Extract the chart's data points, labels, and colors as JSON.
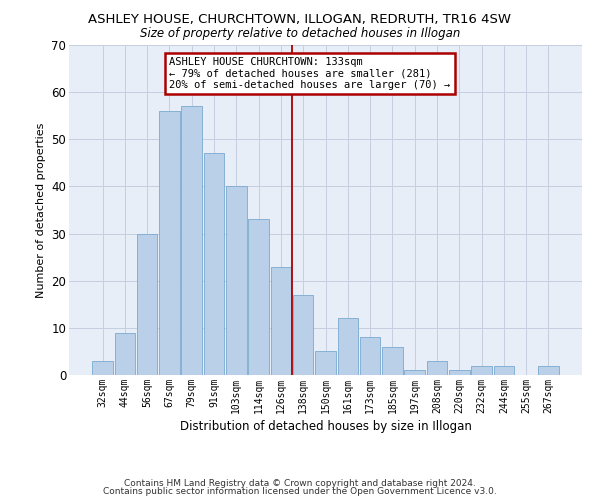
{
  "title": "ASHLEY HOUSE, CHURCHTOWN, ILLOGAN, REDRUTH, TR16 4SW",
  "subtitle": "Size of property relative to detached houses in Illogan",
  "xlabel": "Distribution of detached houses by size in Illogan",
  "ylabel": "Number of detached properties",
  "categories": [
    "32sqm",
    "44sqm",
    "56sqm",
    "67sqm",
    "79sqm",
    "91sqm",
    "103sqm",
    "114sqm",
    "126sqm",
    "138sqm",
    "150sqm",
    "161sqm",
    "173sqm",
    "185sqm",
    "197sqm",
    "208sqm",
    "220sqm",
    "232sqm",
    "244sqm",
    "255sqm",
    "267sqm"
  ],
  "values": [
    3,
    9,
    30,
    56,
    57,
    47,
    40,
    33,
    23,
    17,
    5,
    12,
    8,
    6,
    1,
    3,
    1,
    2,
    2,
    0,
    2
  ],
  "bar_color": "#bad0e8",
  "bar_edgecolor": "#7aaad0",
  "vline_x": 8.5,
  "vline_color": "#aa0000",
  "annotation_text": "ASHLEY HOUSE CHURCHTOWN: 133sqm\n← 79% of detached houses are smaller (281)\n20% of semi-detached houses are larger (70) →",
  "annotation_box_color": "#ffffff",
  "annotation_box_edgecolor": "#aa0000",
  "ylim": [
    0,
    70
  ],
  "yticks": [
    0,
    10,
    20,
    30,
    40,
    50,
    60,
    70
  ],
  "bg_color": "#e8eef8",
  "footer1": "Contains HM Land Registry data © Crown copyright and database right 2024.",
  "footer2": "Contains public sector information licensed under the Open Government Licence v3.0."
}
